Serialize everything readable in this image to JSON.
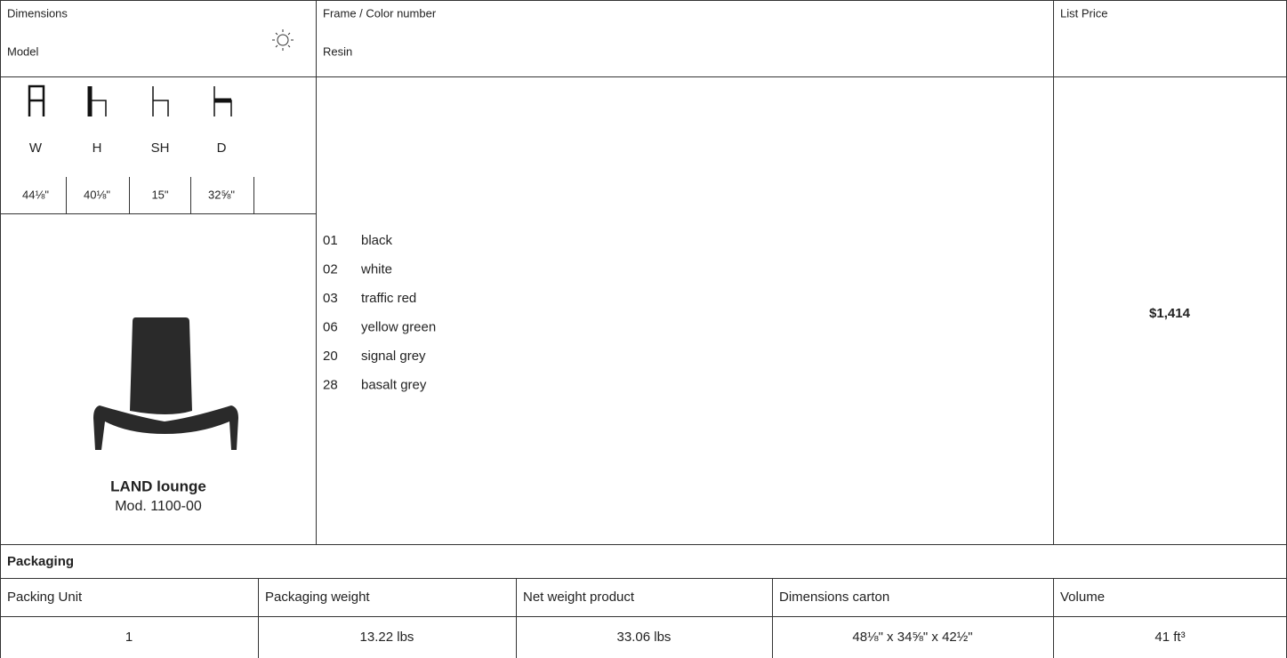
{
  "header": {
    "dimensions": "Dimensions",
    "model": "Model",
    "frame": "Frame / Color number",
    "resin": "Resin",
    "list_price": "List Price"
  },
  "dimensions": {
    "labels": [
      "W",
      "H",
      "SH",
      "D"
    ],
    "values": [
      "44⅛\"",
      "40⅛\"",
      "15\"",
      "32⅝\""
    ]
  },
  "product": {
    "name": "LAND lounge",
    "model": "Mod. 1100-00"
  },
  "colors": [
    {
      "code": "01",
      "name": "black"
    },
    {
      "code": "02",
      "name": "white"
    },
    {
      "code": "03",
      "name": "traffic red"
    },
    {
      "code": "06",
      "name": "yellow green"
    },
    {
      "code": "20",
      "name": "signal grey"
    },
    {
      "code": "28",
      "name": "basalt grey"
    }
  ],
  "price": "$1,414",
  "packaging": {
    "title": "Packaging",
    "headers": [
      "Packing Unit",
      "Packaging weight",
      "Net weight product",
      "Dimensions carton",
      "Volume"
    ],
    "row": [
      "1",
      "13.22 lbs",
      "33.06 lbs",
      "48⅛\" x 34⅝\" x 42½\"",
      "41 ft³"
    ]
  }
}
